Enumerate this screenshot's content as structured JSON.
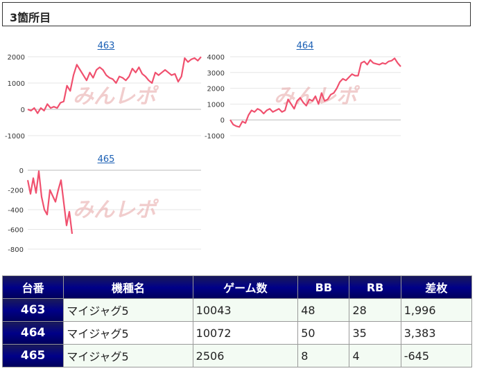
{
  "section_title": "3箇所目",
  "watermark": "みんレポ",
  "charts": [
    {
      "link": "463",
      "chart_data": {
        "type": "line",
        "y_ticks": [
          2000,
          1000,
          0,
          -1000
        ],
        "ylim": [
          -1000,
          2000
        ],
        "color": "#f0506e",
        "values": [
          0,
          -50,
          50,
          -150,
          50,
          -50,
          200,
          50,
          100,
          50,
          250,
          300,
          900,
          700,
          1300,
          1700,
          1500,
          1300,
          1100,
          1400,
          1200,
          1500,
          1600,
          1500,
          1300,
          1200,
          1150,
          1000,
          1250,
          1200,
          1100,
          1250,
          1550,
          1400,
          1600,
          1350,
          1250,
          1100,
          1000,
          1400,
          1300,
          1400,
          1500,
          1400,
          1300,
          1350,
          1050,
          1250,
          1950,
          1800,
          1900,
          1950,
          1850,
          1996
        ]
      }
    },
    {
      "link": "464",
      "chart_data": {
        "type": "line",
        "y_ticks": [
          4000,
          3000,
          2000,
          1000,
          0,
          -1000
        ],
        "ylim": [
          -1000,
          4000
        ],
        "color": "#f0506e",
        "values": [
          0,
          -300,
          -400,
          -450,
          -100,
          -200,
          300,
          600,
          500,
          700,
          600,
          400,
          600,
          700,
          500,
          600,
          700,
          500,
          600,
          1300,
          1000,
          700,
          1200,
          1400,
          1100,
          900,
          1300,
          1200,
          1500,
          1000,
          1700,
          1200,
          1300,
          1600,
          1700,
          2000,
          2400,
          2600,
          2500,
          2700,
          2900,
          2800,
          2800,
          3600,
          3700,
          3500,
          3800,
          3600,
          3550,
          3500,
          3600,
          3550,
          3700,
          3750,
          3900,
          3600,
          3383
        ]
      }
    },
    {
      "link": "465",
      "chart_data": {
        "type": "line",
        "y_ticks": [
          0,
          -200,
          -400,
          -600,
          -800
        ],
        "ylim": [
          -800,
          0
        ],
        "color": "#f0506e",
        "values": [
          -100,
          -240,
          -80,
          -230,
          -10,
          -270,
          -400,
          -450,
          -200,
          -260,
          -320,
          -200,
          -100,
          -330,
          -560,
          -420,
          -645
        ]
      }
    }
  ],
  "table": {
    "headers": [
      "台番",
      "機種名",
      "ゲーム数",
      "BB",
      "RB",
      "差枚"
    ],
    "rows": [
      [
        "463",
        "マイジャグ5",
        "10043",
        "48",
        "28",
        "1,996"
      ],
      [
        "464",
        "マイジャグ5",
        "10072",
        "50",
        "35",
        "3,383"
      ],
      [
        "465",
        "マイジャグ5",
        "2506",
        "8",
        "4",
        "-645"
      ]
    ],
    "negative_color": "#e00000"
  }
}
